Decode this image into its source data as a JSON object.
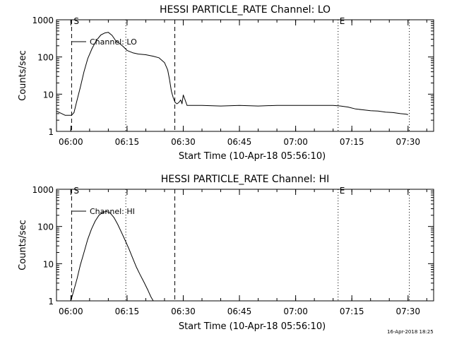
{
  "footer": {
    "timestamp": "16-Apr-2018 18:25"
  },
  "chart_data": [
    {
      "type": "line",
      "title": "HESSI PARTICLE_RATE Channel: LO",
      "xlabel": "Start Time (10-Apr-18 05:56:10)",
      "ylabel": "Counts/sec",
      "yscale": "log",
      "ylim": [
        1,
        1000
      ],
      "xlim": [
        "05:56:10",
        "07:36:50"
      ],
      "x_ticks": [
        "06:00",
        "06:15",
        "06:30",
        "06:45",
        "07:00",
        "07:15",
        "07:30"
      ],
      "y_ticks": [
        "1",
        "10",
        "100",
        "1000"
      ],
      "legend": "Channel: LO",
      "markers": {
        "start": "S",
        "end": "E"
      },
      "markers_time": {
        "start": "06:00:12",
        "end": "07:11:20",
        "dashed": [
          "06:00:12",
          "06:27:45"
        ],
        "dotted": [
          "06:14:40",
          "07:11:20",
          "07:30:20"
        ]
      },
      "series": [
        {
          "name": "Channel: LO",
          "x": [
            "05:56:10",
            "05:58:30",
            "06:00:10",
            "06:00:50",
            "06:01:30",
            "06:02:30",
            "06:03:30",
            "06:04:30",
            "06:05:40",
            "06:06:50",
            "06:08:00",
            "06:09:00",
            "06:10:00",
            "06:11:00",
            "06:12:00",
            "06:13:00",
            "06:14:00",
            "06:15:00",
            "06:16:30",
            "06:18:00",
            "06:20:00",
            "06:22:00",
            "06:23:30",
            "06:25:00",
            "06:25:50",
            "06:26:20",
            "06:26:50",
            "06:27:20",
            "06:27:50",
            "06:28:20",
            "06:28:50",
            "06:29:20",
            "06:29:40",
            "06:30:00",
            "06:30:30",
            "06:31:00",
            "06:31:40",
            "06:32:30",
            "06:35:00",
            "06:40:00",
            "06:45:00",
            "06:50:00",
            "06:55:00",
            "07:00:00",
            "07:05:00",
            "07:10:00",
            "07:12:00",
            "07:14:00",
            "07:16:00",
            "07:18:00",
            "07:20:00",
            "07:22:00",
            "07:24:00",
            "07:26:00",
            "07:28:00",
            "07:29:30",
            "07:30:00"
          ],
          "y": [
            3.5,
            2.7,
            2.7,
            3.2,
            6,
            15,
            40,
            90,
            170,
            280,
            390,
            440,
            460,
            380,
            270,
            230,
            190,
            150,
            130,
            120,
            115,
            105,
            95,
            70,
            45,
            25,
            12,
            8,
            6,
            5.5,
            6,
            7,
            5.5,
            9.5,
            7,
            5,
            5,
            5,
            5,
            4.8,
            5,
            4.8,
            5,
            5,
            5,
            5,
            4.8,
            4.5,
            4,
            3.8,
            3.6,
            3.5,
            3.3,
            3.2,
            3,
            2.9,
            2.8
          ]
        }
      ]
    },
    {
      "type": "line",
      "title": "HESSI PARTICLE_RATE Channel: HI",
      "xlabel": "Start Time (10-Apr-18 05:56:10)",
      "ylabel": "Counts/sec",
      "yscale": "log",
      "ylim": [
        1,
        1000
      ],
      "xlim": [
        "05:56:10",
        "07:36:50"
      ],
      "x_ticks": [
        "06:00",
        "06:15",
        "06:30",
        "06:45",
        "07:00",
        "07:15",
        "07:30"
      ],
      "y_ticks": [
        "1",
        "10",
        "100",
        "1000"
      ],
      "legend": "Channel: HI",
      "markers": {
        "start": "S",
        "end": "E"
      },
      "markers_time": {
        "start": "06:00:12",
        "end": "07:11:20",
        "dashed": [
          "06:00:12",
          "06:27:45"
        ],
        "dotted": [
          "06:14:40",
          "07:11:20",
          "07:30:20"
        ]
      },
      "series": [
        {
          "name": "Channel: HI",
          "x": [
            "06:00:00",
            "06:00:50",
            "06:01:40",
            "06:02:30",
            "06:03:30",
            "06:04:30",
            "06:05:30",
            "06:06:30",
            "06:07:30",
            "06:08:30",
            "06:09:30",
            "06:10:30",
            "06:11:30",
            "06:12:30",
            "06:13:30",
            "06:14:30",
            "06:15:30",
            "06:16:30",
            "06:17:30",
            "06:18:30",
            "06:19:30",
            "06:20:30",
            "06:21:20",
            "06:22:00"
          ],
          "y": [
            1,
            2,
            4,
            9,
            20,
            45,
            85,
            140,
            200,
            240,
            255,
            230,
            175,
            115,
            70,
            42,
            25,
            14,
            8,
            5,
            3.2,
            2,
            1.3,
            1
          ]
        }
      ]
    }
  ]
}
